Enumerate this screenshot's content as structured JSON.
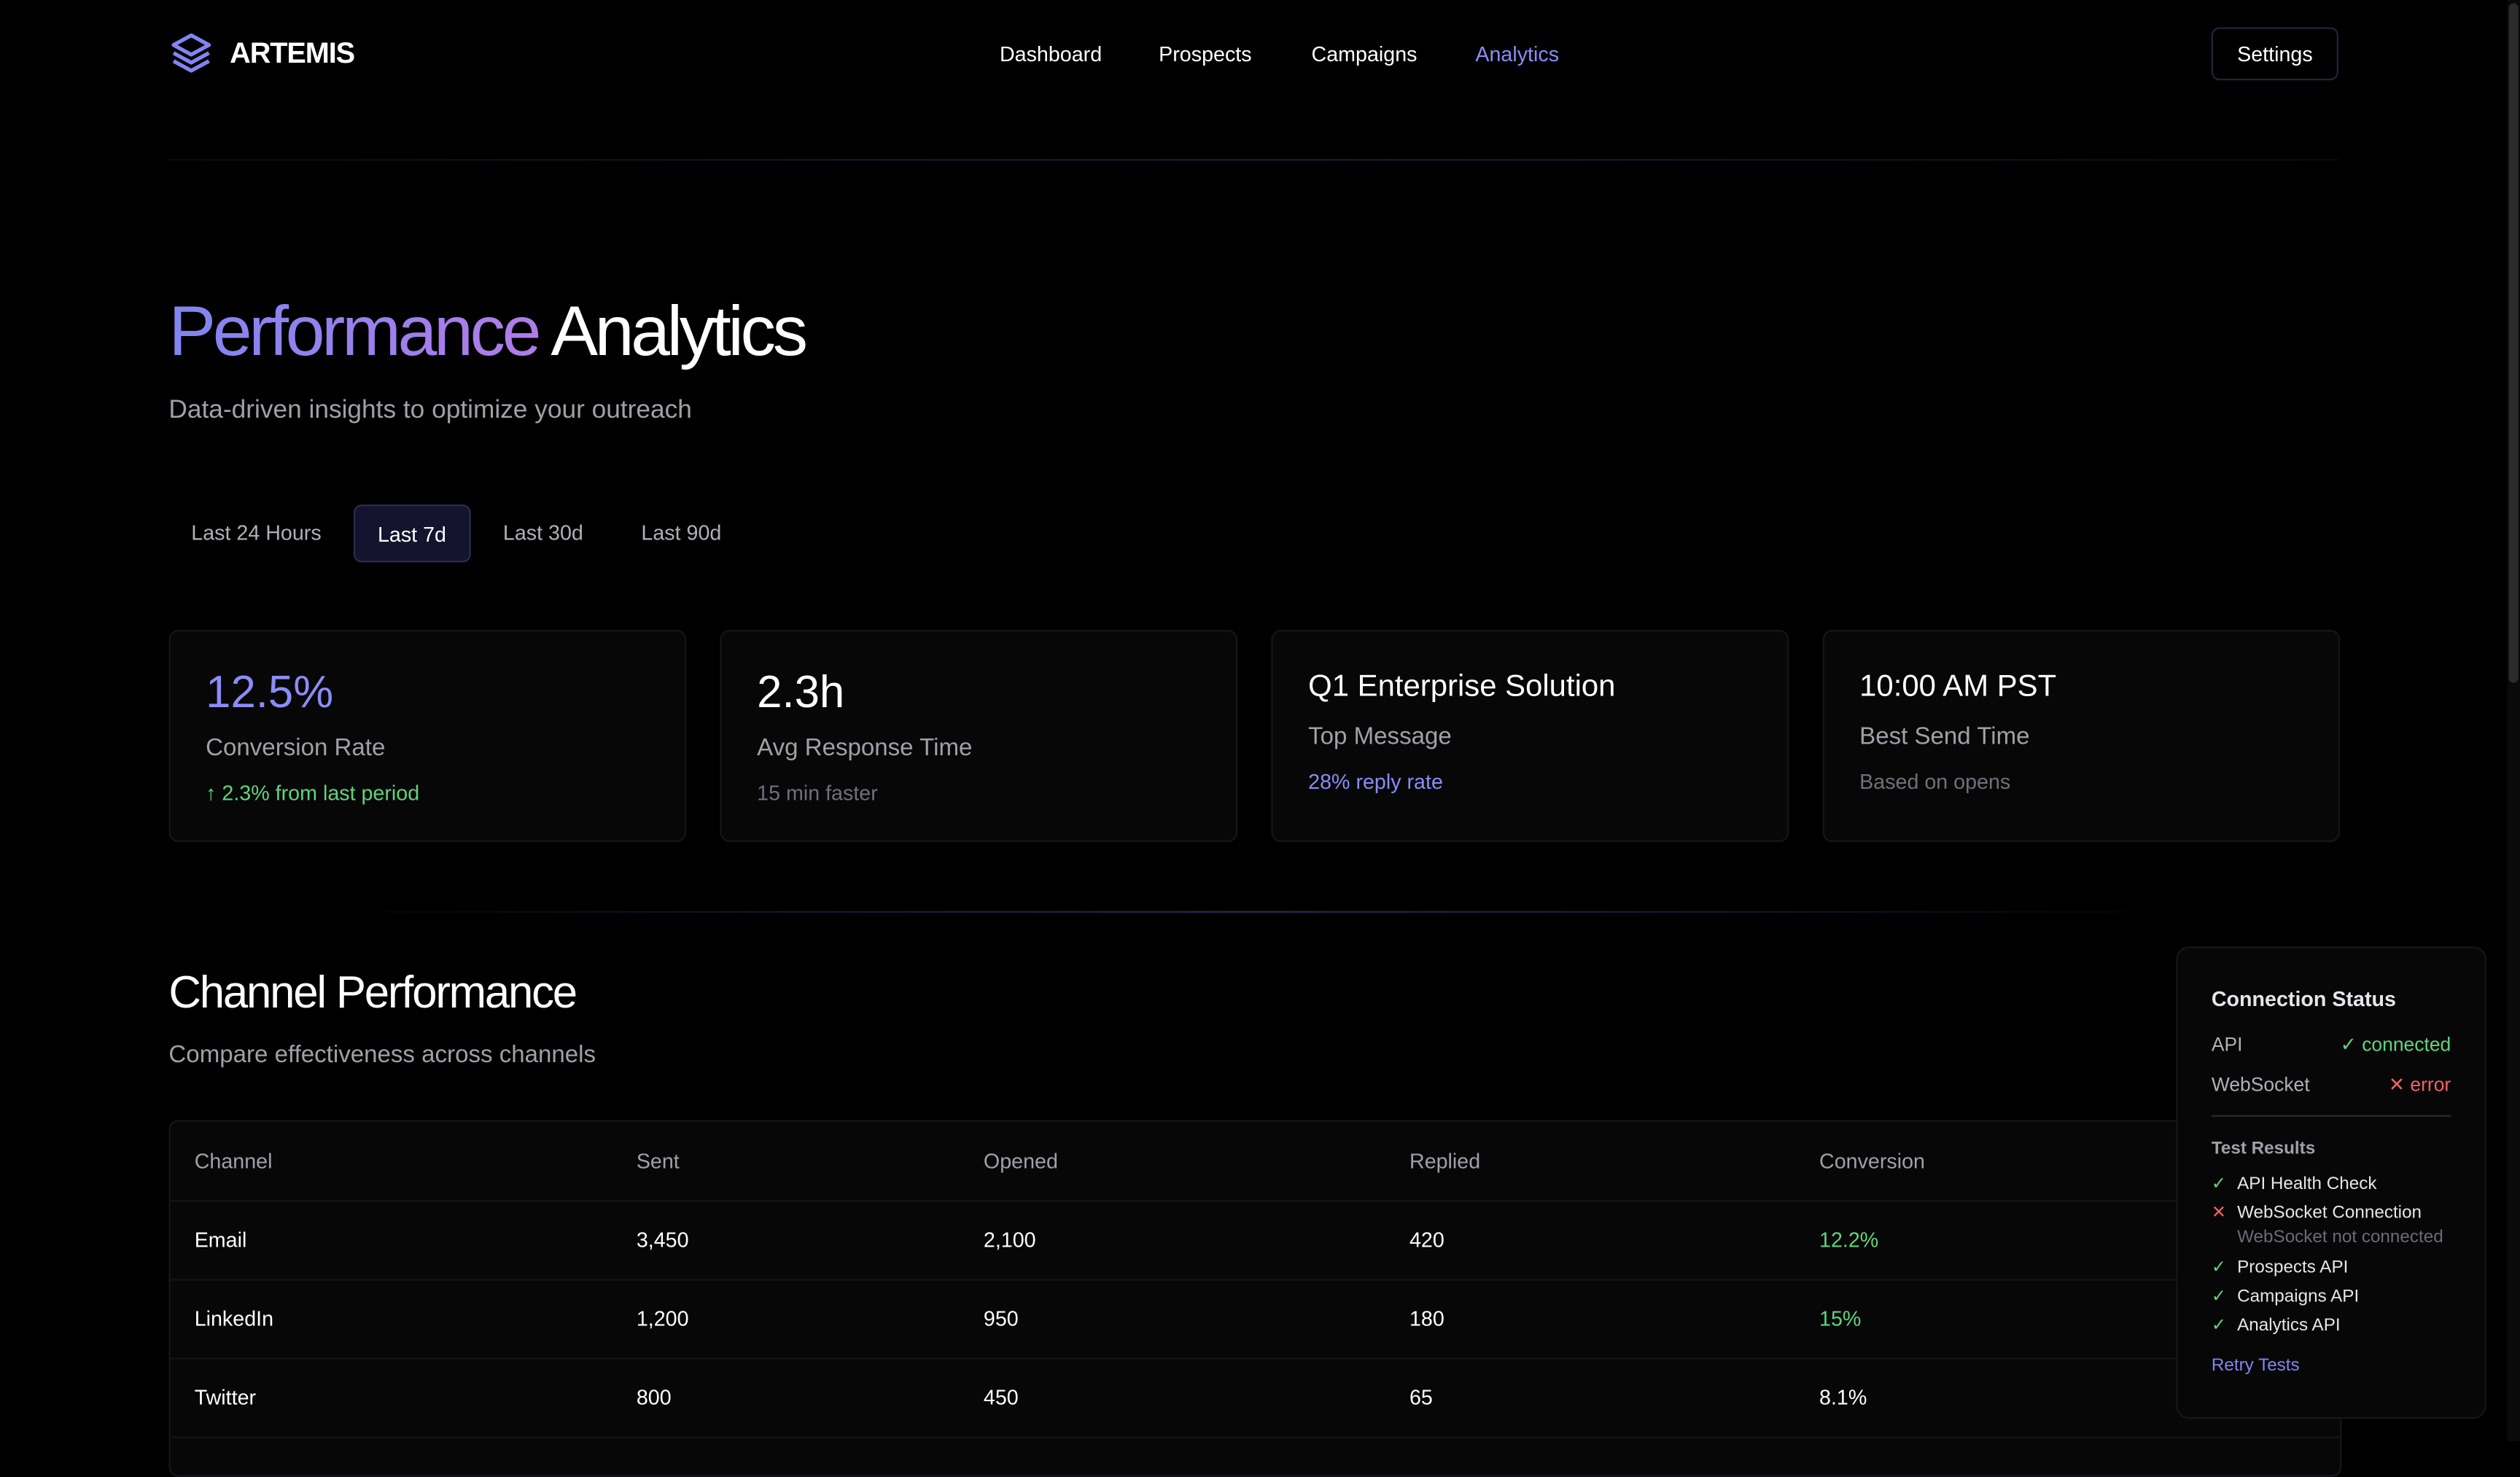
{
  "header": {
    "brand": "ARTEMIS",
    "nav": [
      "Dashboard",
      "Prospects",
      "Campaigns",
      "Analytics"
    ],
    "active_nav": "Analytics",
    "settings_label": "Settings"
  },
  "hero": {
    "title_highlight": "Performance",
    "title_rest": "Analytics",
    "subtitle": "Data-driven insights to optimize your outreach"
  },
  "tabs": {
    "items": [
      "Last 24 Hours",
      "Last 7d",
      "Last 30d",
      "Last 90d"
    ],
    "active": "Last 7d"
  },
  "stats": [
    {
      "value": "12.5%",
      "label": "Conversion Rate",
      "sub": "↑ 2.3% from last period"
    },
    {
      "value": "2.3h",
      "label": "Avg Response Time",
      "sub": "15 min faster"
    },
    {
      "value": "Q1 Enterprise Solution",
      "label": "Top Message",
      "sub": "28% reply rate"
    },
    {
      "value": "10:00 AM PST",
      "label": "Best Send Time",
      "sub": "Based on opens"
    }
  ],
  "channel": {
    "title": "Channel Performance",
    "subtitle": "Compare effectiveness across channels",
    "columns": [
      "Channel",
      "Sent",
      "Opened",
      "Replied",
      "Conversion"
    ],
    "rows": [
      [
        "Email",
        "3,450",
        "2,100",
        "420",
        "12.2%"
      ],
      [
        "LinkedIn",
        "1,200",
        "950",
        "180",
        "15%"
      ],
      [
        "Twitter",
        "800",
        "450",
        "65",
        "8.1%"
      ]
    ]
  },
  "connection": {
    "title": "Connection Status",
    "api_label": "API",
    "api_status": "✓ connected",
    "ws_label": "WebSocket",
    "ws_status": "✕ error",
    "tests_title": "Test Results",
    "tests": [
      {
        "icon": "✓",
        "name": "API Health Check"
      },
      {
        "icon": "✕",
        "name": "WebSocket Connection",
        "detail": "WebSocket not connected"
      },
      {
        "icon": "✓",
        "name": "Prospects API"
      },
      {
        "icon": "✓",
        "name": "Campaigns API"
      },
      {
        "icon": "✓",
        "name": "Analytics API"
      }
    ],
    "retry_label": "Retry Tests"
  },
  "colors": {
    "accent": "#8085f0",
    "success": "#5fd67a",
    "error": "#f06262",
    "background": "#000000"
  }
}
